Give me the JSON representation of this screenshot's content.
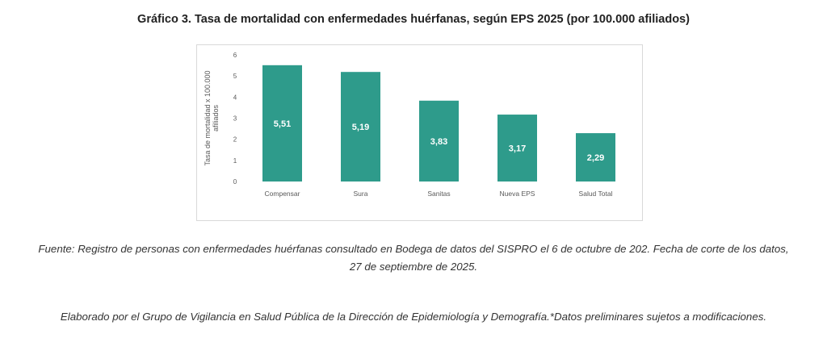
{
  "page": {
    "title": "Gráfico 3. Tasa de mortalidad con enfermedades huérfanas, según EPS 2025 (por 100.000 afiliados)",
    "source_note": "Fuente: Registro de personas con enfermedades huérfanas consultado en Bodega de datos del SISPRO el 6 de octubre de 202. Fecha de corte de los datos, 27 de septiembre de 2025.",
    "credits_note": "Elaborado por el Grupo de Vigilancia en Salud Pública de la Dirección de Epidemiología y Demografía.*Datos preliminares sujetos a modificaciones."
  },
  "chart_data": {
    "type": "bar",
    "title": "Gráfico 3. Tasa de mortalidad con enfermedades huérfanas, según EPS 2025 (por 100.000 afiliados)",
    "xlabel": "",
    "ylabel": "Tasa de mortalidad x 100.000 afiliados",
    "ylabel_lines": [
      "Tasa de mortalidad x 100.000",
      "afiliados"
    ],
    "categories": [
      "Compensar",
      "Sura",
      "Sanitas",
      "Nueva EPS",
      "Salud Total"
    ],
    "values": [
      5.51,
      5.19,
      3.83,
      3.17,
      2.29
    ],
    "value_labels": [
      "5,51",
      "5,19",
      "3,83",
      "3,17",
      "2,29"
    ],
    "ylim": [
      0,
      6
    ],
    "yticks": [
      0,
      1,
      2,
      3,
      4,
      5,
      6
    ],
    "grid": false,
    "colors": {
      "bar": "#2E9B8B",
      "bar_label": "#ffffff",
      "axis_text": "#595959"
    }
  }
}
